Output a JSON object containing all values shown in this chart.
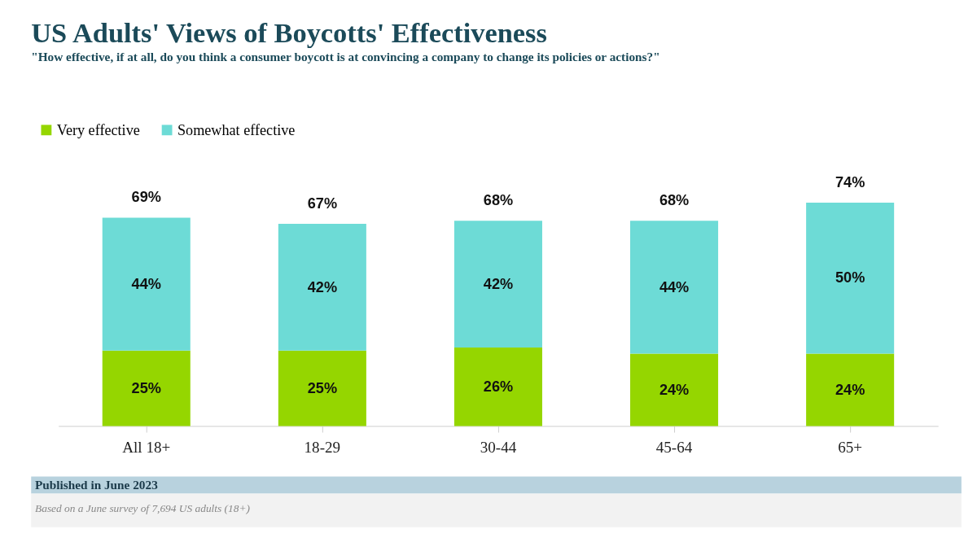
{
  "chart_data": {
    "type": "bar",
    "stacked": true,
    "title": "US Adults' Views of Boycotts' Effectiveness",
    "subtitle": "\"How effective, if at all, do you think a consumer boycott is at convincing a company to change its policies or actions?\"",
    "categories": [
      "All 18+",
      "18-29",
      "30-44",
      "45-64",
      "65+"
    ],
    "series": [
      {
        "name": "Very effective",
        "color": "#95d600",
        "values": [
          25,
          25,
          26,
          24,
          24
        ],
        "value_labels": [
          "25%",
          "25%",
          "26%",
          "24%",
          "24%"
        ]
      },
      {
        "name": "Somewhat effective",
        "color": "#6ddbd6",
        "values": [
          44,
          42,
          42,
          44,
          50
        ],
        "value_labels": [
          "44%",
          "42%",
          "42%",
          "44%",
          "50%"
        ]
      }
    ],
    "totals": [
      "69%",
      "67%",
      "68%",
      "68%",
      "74%"
    ],
    "legend": "top left",
    "grid": false,
    "annotations": [
      "Published in June 2023",
      "Based on a June survey of 7,694 US adults (18+)"
    ]
  }
}
